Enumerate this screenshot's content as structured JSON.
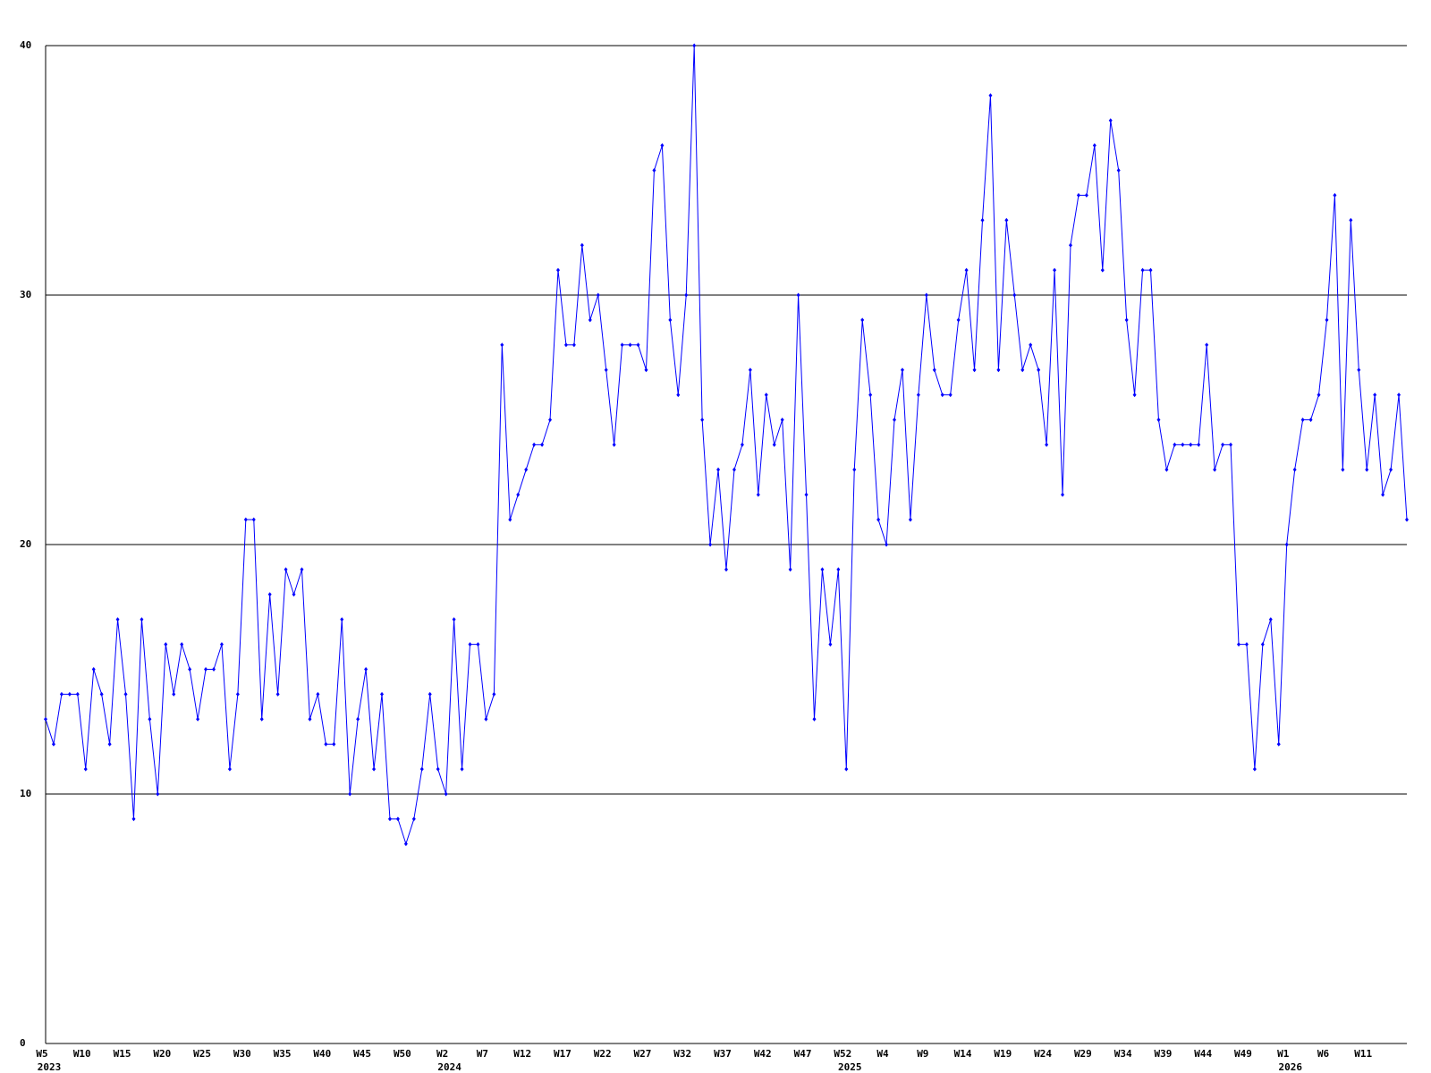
{
  "chart_data": {
    "type": "line",
    "categories": [
      "W5",
      null,
      null,
      null,
      null,
      "W10",
      null,
      null,
      null,
      null,
      "W15",
      null,
      null,
      null,
      null,
      "W20",
      null,
      null,
      null,
      null,
      "W25",
      null,
      null,
      null,
      null,
      "W30",
      null,
      null,
      null,
      null,
      "W35",
      null,
      null,
      null,
      null,
      "W40",
      null,
      null,
      null,
      null,
      "W45",
      null,
      null,
      null,
      null,
      "W50",
      null,
      null,
      null,
      null,
      "W2",
      null,
      null,
      null,
      null,
      "W7",
      null,
      null,
      null,
      null,
      "W12",
      null,
      null,
      null,
      null,
      "W17",
      null,
      null,
      null,
      null,
      "W22",
      null,
      null,
      null,
      null,
      "W27",
      null,
      null,
      null,
      null,
      "W32",
      null,
      null,
      null,
      null,
      "W37",
      null,
      null,
      null,
      null,
      "W42",
      null,
      null,
      null,
      null,
      "W47",
      null,
      null,
      null,
      null,
      "W52",
      null,
      null,
      null,
      null,
      "W4",
      null,
      null,
      null,
      null,
      "W9",
      null,
      null,
      null,
      null,
      "W14",
      null,
      null,
      null,
      null,
      "W19",
      null,
      null,
      null,
      null,
      "W24",
      null,
      null,
      null,
      null,
      "W29",
      null,
      null,
      null,
      null,
      "W34",
      null,
      null,
      null,
      null,
      "W39",
      null,
      null,
      null,
      null,
      "W44",
      null,
      null,
      null,
      null,
      "W49",
      null,
      null,
      null,
      null,
      "W1",
      null,
      null,
      null,
      null,
      "W6",
      null,
      null,
      null,
      null,
      "W11",
      null,
      null,
      null,
      null,
      null
    ],
    "category_years": [
      "2023",
      null,
      null,
      null,
      null,
      null,
      null,
      null,
      null,
      null,
      null,
      null,
      null,
      null,
      null,
      null,
      null,
      null,
      null,
      null,
      null,
      null,
      null,
      null,
      null,
      null,
      null,
      null,
      null,
      null,
      null,
      null,
      null,
      null,
      null,
      null,
      null,
      null,
      null,
      null,
      null,
      null,
      null,
      null,
      null,
      null,
      null,
      null,
      null,
      null,
      "2024",
      null,
      null,
      null,
      null,
      null,
      null,
      null,
      null,
      null,
      null,
      null,
      null,
      null,
      null,
      null,
      null,
      null,
      null,
      null,
      null,
      null,
      null,
      null,
      null,
      null,
      null,
      null,
      null,
      null,
      null,
      null,
      null,
      null,
      null,
      null,
      null,
      null,
      null,
      null,
      null,
      null,
      null,
      null,
      null,
      null,
      null,
      null,
      null,
      null,
      "2025",
      null,
      null,
      null,
      null,
      null,
      null,
      null,
      null,
      null,
      null,
      null,
      null,
      null,
      null,
      null,
      null,
      null,
      null,
      null,
      null,
      null,
      null,
      null,
      null,
      null,
      null,
      null,
      null,
      null,
      null,
      null,
      null,
      null,
      null,
      null,
      null,
      null,
      null,
      null,
      null,
      null,
      null,
      null,
      null,
      null,
      null,
      null,
      null,
      null,
      null,
      null,
      null,
      null,
      null,
      "2026",
      null,
      null,
      null,
      null,
      null,
      null,
      null,
      null,
      null,
      null,
      null,
      null,
      null,
      null,
      null
    ],
    "values": [
      13,
      12,
      14,
      14,
      14,
      11,
      15,
      14,
      12,
      17,
      14,
      9,
      17,
      13,
      10,
      16,
      14,
      16,
      15,
      13,
      15,
      15,
      16,
      11,
      14,
      21,
      21,
      13,
      18,
      14,
      19,
      18,
      19,
      13,
      14,
      12,
      12,
      17,
      10,
      13,
      15,
      11,
      14,
      9,
      9,
      8,
      9,
      11,
      14,
      11,
      10,
      17,
      11,
      16,
      16,
      13,
      14,
      28,
      21,
      22,
      23,
      24,
      24,
      25,
      31,
      28,
      28,
      32,
      29,
      30,
      27,
      24,
      28,
      28,
      28,
      27,
      35,
      36,
      29,
      26,
      30,
      40,
      25,
      20,
      23,
      19,
      23,
      24,
      27,
      22,
      26,
      24,
      25,
      19,
      30,
      22,
      13,
      19,
      16,
      19,
      11,
      23,
      29,
      26,
      21,
      20,
      25,
      27,
      21,
      26,
      30,
      27,
      26,
      26,
      29,
      31,
      27,
      33,
      38,
      27,
      33,
      30,
      27,
      28,
      27,
      24,
      31,
      22,
      32,
      34,
      34,
      36,
      31,
      37,
      35,
      29,
      26,
      31,
      31,
      25,
      23,
      24,
      24,
      24,
      24,
      28,
      23,
      24,
      24,
      16,
      16,
      11,
      16,
      17,
      12,
      20,
      23,
      25,
      25,
      26,
      29,
      34,
      23,
      33,
      27,
      23,
      26,
      22,
      23,
      26,
      21
    ],
    "color": "#0000ff",
    "ylim": [
      0,
      40
    ],
    "yticks": [
      0,
      10,
      20,
      30,
      40
    ],
    "grid": true
  }
}
